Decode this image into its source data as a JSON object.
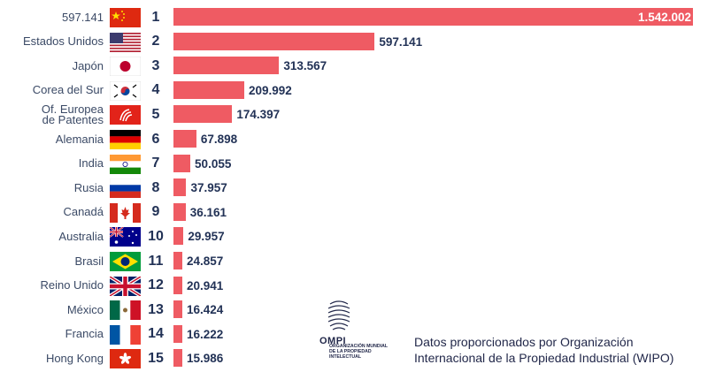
{
  "chart_data": {
    "type": "bar",
    "orientation": "horizontal",
    "title": "",
    "xlabel": "",
    "ylabel": "",
    "categories": [
      "597.141",
      "Estados Unidos",
      "Japón",
      "Corea del Sur",
      "Of. Europea\nde Patentes",
      "Alemania",
      "India",
      "Rusia",
      "Canadá",
      "Australia",
      "Brasil",
      "Reino Unido",
      "México",
      "Francia",
      "Hong Kong"
    ],
    "ranks": [
      "1",
      "2",
      "3",
      "4",
      "5",
      "6",
      "7",
      "8",
      "9",
      "10",
      "11",
      "12",
      "13",
      "14",
      "15"
    ],
    "values": [
      1542002,
      597141,
      313567,
      209992,
      174397,
      67898,
      50055,
      37957,
      36161,
      29957,
      24857,
      20941,
      16424,
      16222,
      15986
    ],
    "value_labels": [
      "1.542.002",
      "597.141",
      "313.567",
      "209.992",
      "174.397",
      "67.898",
      "50.055",
      "37.957",
      "36.161",
      "29.957",
      "24.857",
      "20.941",
      "16.424",
      "16.222",
      "15.986"
    ],
    "flag_icons": [
      "china-flag-icon",
      "usa-flag-icon",
      "japan-flag-icon",
      "south-korea-flag-icon",
      "epo-logo-icon",
      "germany-flag-icon",
      "india-flag-icon",
      "russia-flag-icon",
      "canada-flag-icon",
      "australia-flag-icon",
      "brazil-flag-icon",
      "uk-flag-icon",
      "mexico-flag-icon",
      "france-flag-icon",
      "hong-kong-flag-icon"
    ],
    "xlim": [
      0,
      1542002
    ],
    "bar_color": "#ef5b63",
    "legend": "none"
  },
  "logo": {
    "name": "OMPI",
    "subtitle": "ORGANIZACIÓN MUNDIAL\nDE LA PROPIEDAD\nINTELECTUAL"
  },
  "source_note": "Datos proporcionados por Organización\nInternacional de la Propiedad Industrial (WIPO)",
  "colors": {
    "bar": "#ef5b63",
    "label": "#3b4a66",
    "value": "#223256"
  }
}
